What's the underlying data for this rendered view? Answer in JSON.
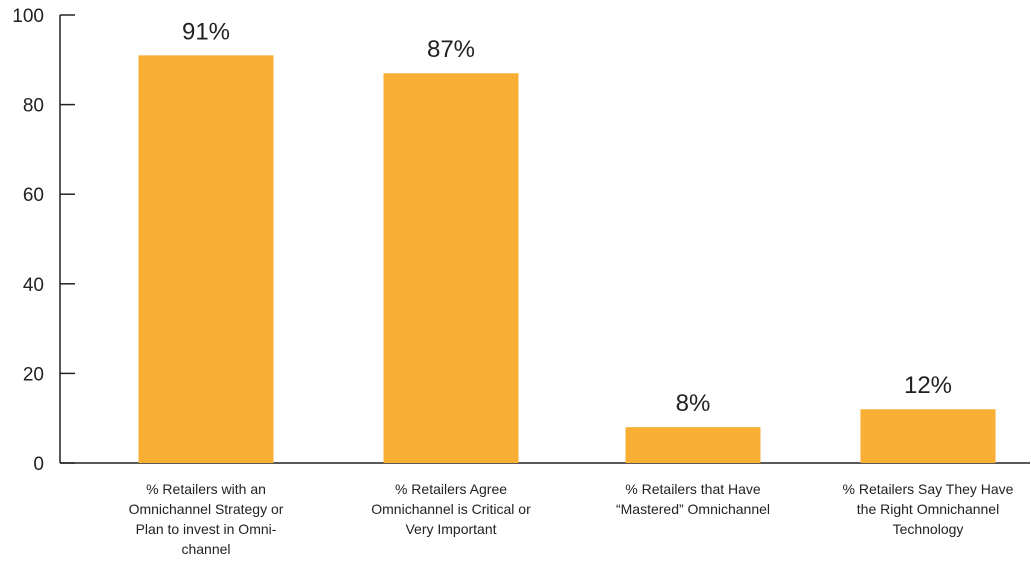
{
  "chart_data": {
    "type": "bar",
    "categories": [
      [
        "% Retailers with an",
        "Omnichannel Strategy or",
        "Plan to invest in Omni-",
        "channel"
      ],
      [
        "% Retailers Agree",
        "Omnichannel is Critical or",
        "Very Important"
      ],
      [
        "% Retailers that Have",
        "“Mastered” Omnichannel"
      ],
      [
        "% Retailers Say They Have",
        "the Right Omnichannel",
        "Technology"
      ]
    ],
    "values": [
      91,
      87,
      8,
      12
    ],
    "data_labels": [
      "91%",
      "87%",
      "8%",
      "12%"
    ],
    "ylim": [
      0,
      100
    ],
    "yticks": [
      "0",
      "20",
      "40",
      "60",
      "80",
      "100"
    ],
    "title": "",
    "xlabel": "",
    "ylabel": "",
    "grid": false,
    "bar_color": "#F9AE34",
    "axis_color": "#222222"
  }
}
